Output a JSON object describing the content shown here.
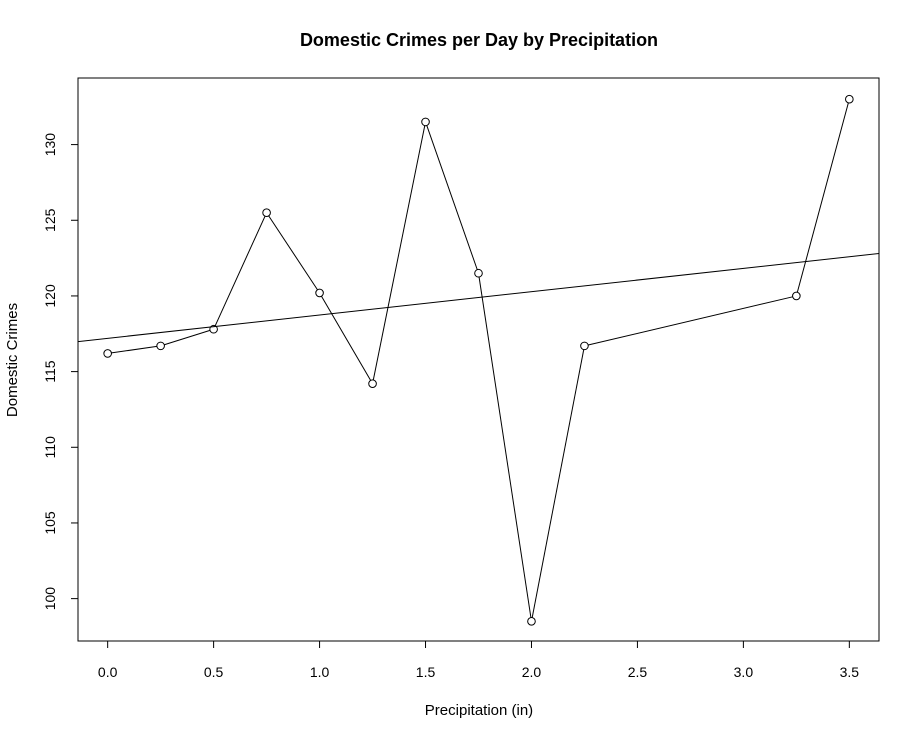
{
  "chart_data": {
    "type": "line",
    "title": "Domestic Crimes per Day by Precipitation",
    "xlabel": "Precipitation (in)",
    "ylabel": "Domestic Crimes",
    "xlim": [
      -0.14,
      3.64
    ],
    "ylim": [
      97.2,
      134.4
    ],
    "x_ticks": [
      0.0,
      0.5,
      1.0,
      1.5,
      2.0,
      2.5,
      3.0,
      3.5
    ],
    "x_tick_labels": [
      "0.0",
      "0.5",
      "1.0",
      "1.5",
      "2.0",
      "2.5",
      "3.0",
      "3.5"
    ],
    "y_ticks": [
      100,
      105,
      110,
      115,
      120,
      125,
      130
    ],
    "y_tick_labels": [
      "100",
      "105",
      "110",
      "115",
      "120",
      "125",
      "130"
    ],
    "grid": false,
    "series": [
      {
        "style": "points-and-lines",
        "marker": "open-circle",
        "color": "#000000",
        "x": [
          0.0,
          0.25,
          0.5,
          0.75,
          1.0,
          1.25,
          1.5,
          1.75,
          2.0,
          2.25,
          3.25,
          3.5
        ],
        "y": [
          116.2,
          116.7,
          117.8,
          125.5,
          120.2,
          114.2,
          131.5,
          121.5,
          98.5,
          116.7,
          120.0,
          133.0
        ]
      },
      {
        "style": "line",
        "kind": "regression-line",
        "color": "#000000",
        "intercept": 117.2,
        "slope": 1.54
      }
    ]
  }
}
